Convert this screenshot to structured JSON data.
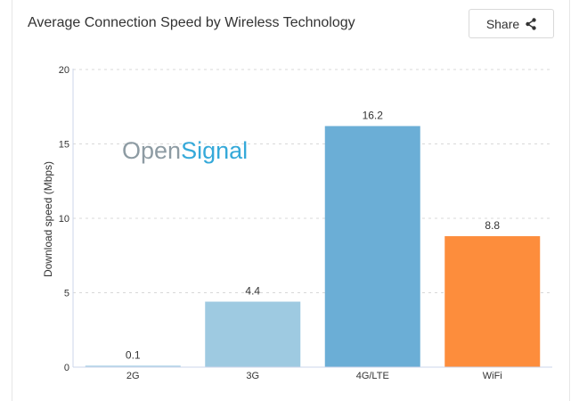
{
  "header": {
    "title": "Average Connection Speed by Wireless Technology",
    "share_label": "Share"
  },
  "watermark": {
    "part1": "Open",
    "part2": "Signal"
  },
  "chart_data": {
    "type": "bar",
    "title": "Average Connection Speed by Wireless Technology",
    "xlabel": "",
    "ylabel": "Download speed (Mbps)",
    "ylim": [
      0,
      20
    ],
    "yticks": [
      0,
      5,
      10,
      15,
      20
    ],
    "grid": true,
    "categories": [
      "2G",
      "3G",
      "4G/LTE",
      "WiFi"
    ],
    "values": [
      0.1,
      4.4,
      16.2,
      8.8
    ],
    "data_labels": [
      "0.1",
      "4.4",
      "16.2",
      "8.8"
    ],
    "colors": [
      "#a8cfe6",
      "#9ecae1",
      "#6baed6",
      "#fd8d3c"
    ]
  }
}
